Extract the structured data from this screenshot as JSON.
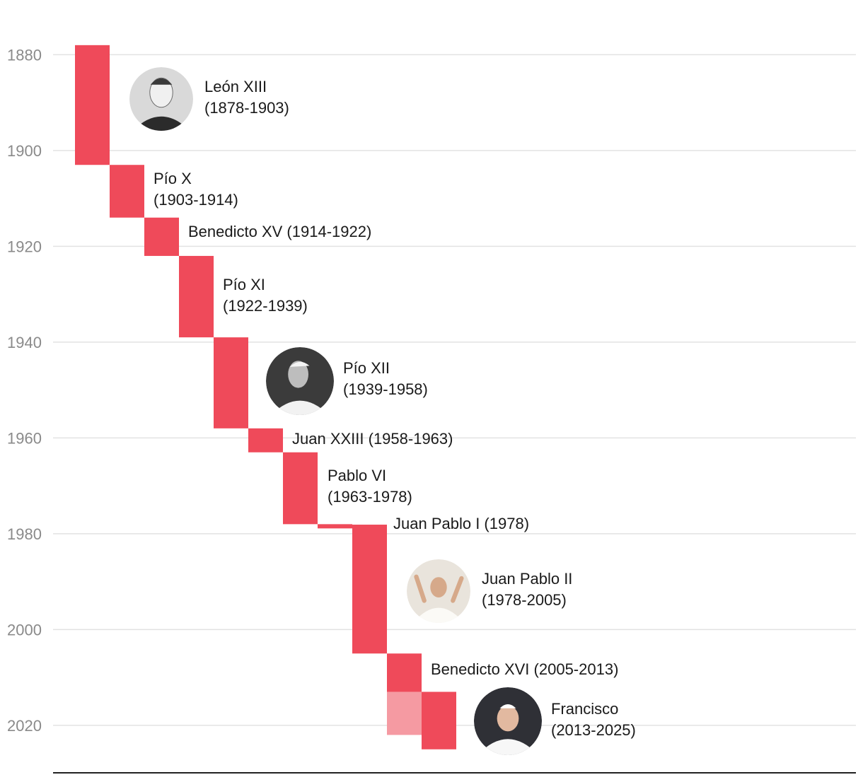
{
  "colors": {
    "bar": "#ef4a5a",
    "bar_light": "#f59aa2",
    "grid": "#e2e2e2",
    "axis": "#222222",
    "tick_text": "#8a8a8a",
    "label_text": "#1a1a1a"
  },
  "chart_data": {
    "type": "timeline-gantt",
    "y_axis": {
      "ticks": [
        "1880",
        "1900",
        "1920",
        "1940",
        "1960",
        "1980",
        "2000",
        "2020"
      ],
      "range": [
        1878,
        2025
      ],
      "direction": "down"
    },
    "grid": true,
    "series": [
      {
        "pope": "León XIII",
        "start": 1878,
        "end": 1903,
        "label_lines": [
          "León XIII",
          "(1878-1903)"
        ],
        "portrait": "leo-xiii-portrait"
      },
      {
        "pope": "Pío X",
        "start": 1903,
        "end": 1914,
        "label_lines": [
          "Pío X",
          "(1903-1914)"
        ]
      },
      {
        "pope": "Benedicto XV",
        "start": 1914,
        "end": 1922,
        "label_lines": [
          "Benedicto XV (1914-1922)"
        ]
      },
      {
        "pope": "Pío XI",
        "start": 1922,
        "end": 1939,
        "label_lines": [
          "Pío XI",
          "(1922-1939)"
        ]
      },
      {
        "pope": "Pío XII",
        "start": 1939,
        "end": 1958,
        "label_lines": [
          "Pío XII",
          "(1939-1958)"
        ],
        "portrait": "pius-xii-portrait"
      },
      {
        "pope": "Juan XXIII",
        "start": 1958,
        "end": 1963,
        "label_lines": [
          "Juan XXIII (1958-1963)"
        ]
      },
      {
        "pope": "Pablo VI",
        "start": 1963,
        "end": 1978,
        "label_lines": [
          "Pablo VI",
          "(1963-1978)"
        ]
      },
      {
        "pope": "Juan Pablo I",
        "start": 1978,
        "end": 1978.1,
        "label_lines": [
          "Juan Pablo I (1978)"
        ]
      },
      {
        "pope": "Juan Pablo II",
        "start": 1978.1,
        "end": 2005,
        "label_lines": [
          "Juan Pablo II",
          "(1978-2005)"
        ],
        "portrait": "john-paul-ii-portrait"
      },
      {
        "pope": "Benedicto XVI",
        "start": 2005,
        "end": 2013,
        "label_lines": [
          "Benedicto XVI (2005-2013)"
        ],
        "extension_end": 2022
      },
      {
        "pope": "Francisco",
        "start": 2013,
        "end": 2025,
        "label_lines": [
          "Francisco",
          "(2013-2025)"
        ],
        "portrait": "francis-portrait"
      }
    ]
  }
}
